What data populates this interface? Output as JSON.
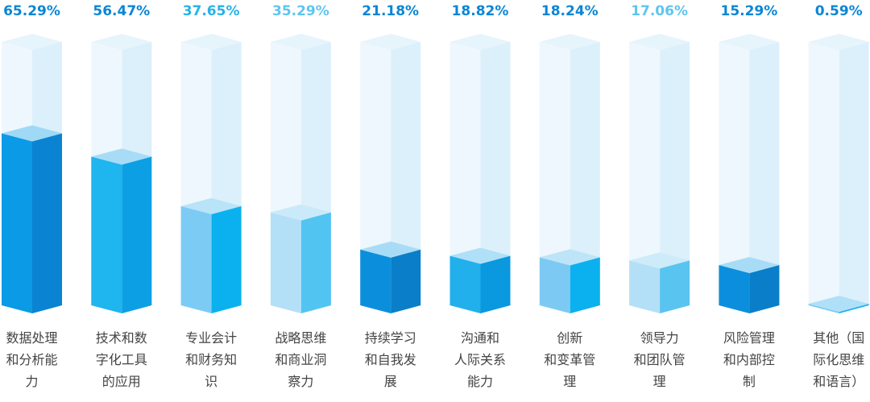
{
  "chart_data": {
    "type": "bar",
    "title": "",
    "xlabel": "",
    "ylabel": "",
    "ylim": [
      0,
      100
    ],
    "unit": "%",
    "categories": [
      [
        "数据处理",
        "和分析能",
        "力"
      ],
      [
        "技术和数",
        "字化工具",
        "的应用"
      ],
      [
        "专业会计",
        "和财务知",
        "识"
      ],
      [
        "战略思维",
        "和商业洞",
        "察力"
      ],
      [
        "持续学习",
        "和自我发",
        "展"
      ],
      [
        "沟通和",
        "人际关系",
        "能力"
      ],
      [
        "创新",
        "和变革管",
        "理"
      ],
      [
        "领导力",
        "和团队管",
        "理"
      ],
      [
        "风险管理",
        "和内部控",
        "制"
      ],
      [
        "其他（国",
        "际化思维",
        "和语言）"
      ]
    ],
    "values": [
      65.29,
      56.47,
      37.65,
      35.29,
      21.18,
      18.82,
      18.24,
      17.06,
      15.29,
      0.59
    ],
    "value_labels": [
      "65.29%",
      "56.47%",
      "37.65%",
      "35.29%",
      "21.18%",
      "18.82%",
      "18.24%",
      "17.06%",
      "15.29%",
      "0.59%"
    ],
    "label_colors": [
      "#0b86d4",
      "#0b86d4",
      "#26b2e8",
      "#5ec5f0",
      "#0b86d4",
      "#0b86d4",
      "#0b86d4",
      "#5ec5f0",
      "#0b86d4",
      "#0b86d4"
    ],
    "bar_colors": [
      {
        "front": "#0b9ae6",
        "side": "#0a84d2",
        "top": "#9fd9f6"
      },
      {
        "front": "#1fb5ee",
        "side": "#0d9fe4",
        "top": "#a8dcf6"
      },
      {
        "front": "#7bcbf5",
        "side": "#0ab1ee",
        "top": "#b9e3f7"
      },
      {
        "front": "#b4e0f7",
        "side": "#52c4f1",
        "top": "#cbeaf9"
      },
      {
        "front": "#0b8fdd",
        "side": "#0a7ec8",
        "top": "#a8dcf6"
      },
      {
        "front": "#21b0ec",
        "side": "#0a98df",
        "top": "#b0e0f7"
      },
      {
        "front": "#7ccaf3",
        "side": "#0ab1ee",
        "top": "#bde4f7"
      },
      {
        "front": "#b4e0f7",
        "side": "#5ac4f0",
        "top": "#cdebf9"
      },
      {
        "front": "#0b8fdd",
        "side": "#0a7ec8",
        "top": "#a8dcf6"
      },
      {
        "front": "#7ccaf3",
        "side": "#1ab3ee",
        "top": "#b0e0f7"
      }
    ],
    "track_colors": {
      "front": "#eef7fd",
      "side": "#dcf0fb",
      "top": "#e6f4fc"
    },
    "grid": false,
    "legend": "none"
  }
}
